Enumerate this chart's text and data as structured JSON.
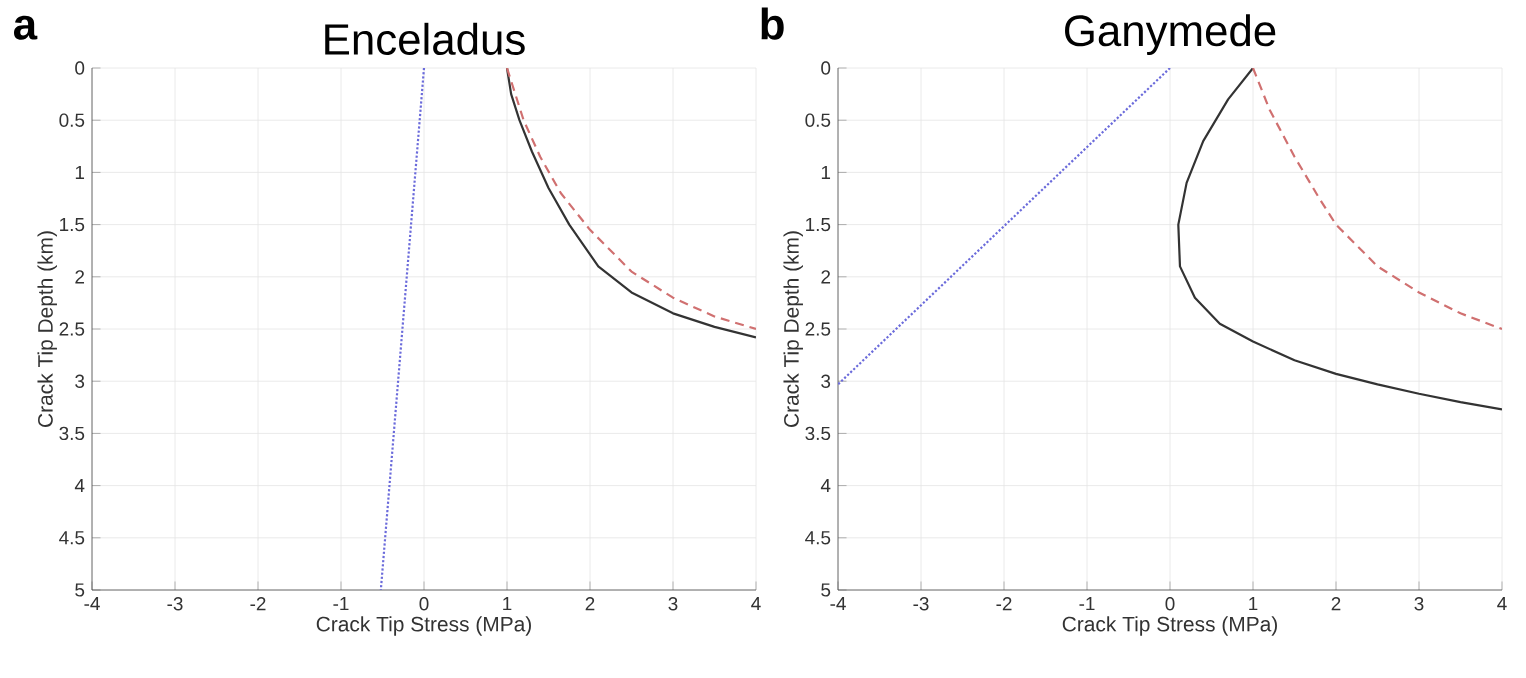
{
  "chart_data": [
    {
      "type": "line",
      "title": "Enceladus",
      "annotations": [
        "a"
      ],
      "xlabel": "Crack Tip Stress (MPa)",
      "ylabel": "Crack Tip Depth (km)",
      "xlim": [
        -4,
        4
      ],
      "ylim": [
        5,
        0
      ],
      "xticks": [
        -4,
        -3,
        -2,
        -1,
        0,
        1,
        2,
        3,
        4
      ],
      "yticks": [
        0,
        0.5,
        1,
        1.5,
        2,
        2.5,
        3,
        3.5,
        4,
        4.5,
        5
      ],
      "grid": true,
      "series": [
        {
          "color": "#6b6bdb",
          "line_style": "dotted",
          "x": [
            0,
            -0.52
          ],
          "values": [
            0,
            5
          ]
        },
        {
          "color": "#333333",
          "line_style": "solid",
          "x": [
            1,
            1.05,
            1.15,
            1.3,
            1.5,
            1.75,
            2.1,
            2.5,
            3,
            3.5,
            4
          ],
          "values": [
            0,
            0.25,
            0.5,
            0.8,
            1.15,
            1.5,
            1.9,
            2.15,
            2.35,
            2.48,
            2.58
          ]
        },
        {
          "color": "#d07070",
          "line_style": "dashed",
          "x": [
            1.0,
            1.1,
            1.2,
            1.4,
            1.65,
            2.0,
            2.5,
            3,
            3.5,
            4
          ],
          "values": [
            0,
            0.25,
            0.5,
            0.85,
            1.2,
            1.55,
            1.95,
            2.2,
            2.38,
            2.5
          ]
        }
      ]
    },
    {
      "type": "line",
      "title": "Ganymede",
      "annotations": [
        "b"
      ],
      "xlabel": "Crack Tip Stress (MPa)",
      "ylabel": "Crack Tip Depth (km)",
      "xlim": [
        -4,
        4
      ],
      "ylim": [
        5,
        0
      ],
      "xticks": [
        -4,
        -3,
        -2,
        -1,
        0,
        1,
        2,
        3,
        4
      ],
      "yticks": [
        0,
        0.5,
        1,
        1.5,
        2,
        2.5,
        3,
        3.5,
        4,
        4.5,
        5
      ],
      "grid": true,
      "series": [
        {
          "color": "#6b6bdb",
          "line_style": "dotted",
          "x": [
            0,
            -4
          ],
          "values": [
            0,
            3.03
          ]
        },
        {
          "color": "#333333",
          "line_style": "solid",
          "x": [
            1,
            0.7,
            0.4,
            0.2,
            0.1,
            0.12,
            0.3,
            0.6,
            1,
            1.5,
            2,
            2.5,
            3,
            3.5,
            4
          ],
          "values": [
            0,
            0.3,
            0.7,
            1.1,
            1.5,
            1.9,
            2.2,
            2.45,
            2.62,
            2.8,
            2.93,
            3.03,
            3.12,
            3.2,
            3.27
          ]
        },
        {
          "color": "#d07070",
          "line_style": "dashed",
          "x": [
            1,
            1.2,
            1.5,
            1.8,
            2,
            2.5,
            3,
            3.5,
            4
          ],
          "values": [
            0,
            0.4,
            0.85,
            1.25,
            1.5,
            1.9,
            2.15,
            2.35,
            2.5
          ]
        }
      ]
    }
  ]
}
